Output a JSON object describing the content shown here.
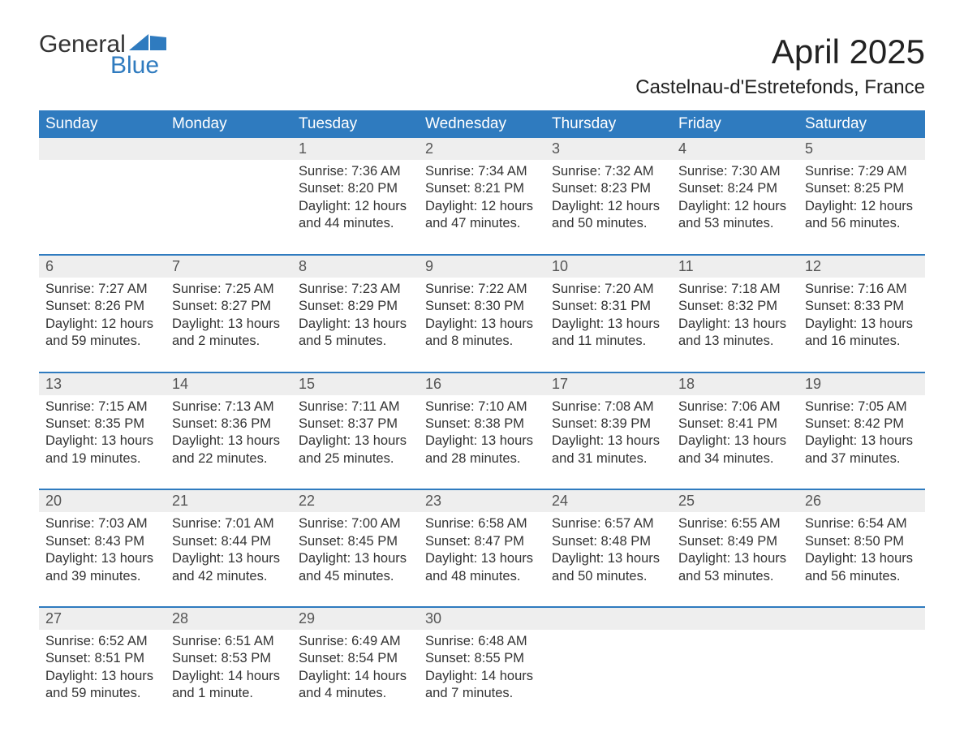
{
  "logo": {
    "text_general": "General",
    "text_blue": "Blue",
    "flag_color": "#2f7bbf"
  },
  "title": "April 2025",
  "location": "Castelnau-d'Estretefonds, France",
  "colors": {
    "header_bg": "#2f7bbf",
    "header_text": "#ffffff",
    "daynum_bg": "#eeeeee",
    "daynum_text": "#555555",
    "body_text": "#333333",
    "rule": "#2f7bbf",
    "background": "#ffffff"
  },
  "layout": {
    "columns": 7,
    "font_family": "Arial",
    "title_fontsize": 42,
    "location_fontsize": 24,
    "weekday_fontsize": 19,
    "daynum_fontsize": 18,
    "cell_fontsize": 16.5
  },
  "weekdays": [
    "Sunday",
    "Monday",
    "Tuesday",
    "Wednesday",
    "Thursday",
    "Friday",
    "Saturday"
  ],
  "weeks": [
    [
      null,
      null,
      {
        "n": "1",
        "sunrise": "7:36 AM",
        "sunset": "8:20 PM",
        "daylight": "12 hours and 44 minutes."
      },
      {
        "n": "2",
        "sunrise": "7:34 AM",
        "sunset": "8:21 PM",
        "daylight": "12 hours and 47 minutes."
      },
      {
        "n": "3",
        "sunrise": "7:32 AM",
        "sunset": "8:23 PM",
        "daylight": "12 hours and 50 minutes."
      },
      {
        "n": "4",
        "sunrise": "7:30 AM",
        "sunset": "8:24 PM",
        "daylight": "12 hours and 53 minutes."
      },
      {
        "n": "5",
        "sunrise": "7:29 AM",
        "sunset": "8:25 PM",
        "daylight": "12 hours and 56 minutes."
      }
    ],
    [
      {
        "n": "6",
        "sunrise": "7:27 AM",
        "sunset": "8:26 PM",
        "daylight": "12 hours and 59 minutes."
      },
      {
        "n": "7",
        "sunrise": "7:25 AM",
        "sunset": "8:27 PM",
        "daylight": "13 hours and 2 minutes."
      },
      {
        "n": "8",
        "sunrise": "7:23 AM",
        "sunset": "8:29 PM",
        "daylight": "13 hours and 5 minutes."
      },
      {
        "n": "9",
        "sunrise": "7:22 AM",
        "sunset": "8:30 PM",
        "daylight": "13 hours and 8 minutes."
      },
      {
        "n": "10",
        "sunrise": "7:20 AM",
        "sunset": "8:31 PM",
        "daylight": "13 hours and 11 minutes."
      },
      {
        "n": "11",
        "sunrise": "7:18 AM",
        "sunset": "8:32 PM",
        "daylight": "13 hours and 13 minutes."
      },
      {
        "n": "12",
        "sunrise": "7:16 AM",
        "sunset": "8:33 PM",
        "daylight": "13 hours and 16 minutes."
      }
    ],
    [
      {
        "n": "13",
        "sunrise": "7:15 AM",
        "sunset": "8:35 PM",
        "daylight": "13 hours and 19 minutes."
      },
      {
        "n": "14",
        "sunrise": "7:13 AM",
        "sunset": "8:36 PM",
        "daylight": "13 hours and 22 minutes."
      },
      {
        "n": "15",
        "sunrise": "7:11 AM",
        "sunset": "8:37 PM",
        "daylight": "13 hours and 25 minutes."
      },
      {
        "n": "16",
        "sunrise": "7:10 AM",
        "sunset": "8:38 PM",
        "daylight": "13 hours and 28 minutes."
      },
      {
        "n": "17",
        "sunrise": "7:08 AM",
        "sunset": "8:39 PM",
        "daylight": "13 hours and 31 minutes."
      },
      {
        "n": "18",
        "sunrise": "7:06 AM",
        "sunset": "8:41 PM",
        "daylight": "13 hours and 34 minutes."
      },
      {
        "n": "19",
        "sunrise": "7:05 AM",
        "sunset": "8:42 PM",
        "daylight": "13 hours and 37 minutes."
      }
    ],
    [
      {
        "n": "20",
        "sunrise": "7:03 AM",
        "sunset": "8:43 PM",
        "daylight": "13 hours and 39 minutes."
      },
      {
        "n": "21",
        "sunrise": "7:01 AM",
        "sunset": "8:44 PM",
        "daylight": "13 hours and 42 minutes."
      },
      {
        "n": "22",
        "sunrise": "7:00 AM",
        "sunset": "8:45 PM",
        "daylight": "13 hours and 45 minutes."
      },
      {
        "n": "23",
        "sunrise": "6:58 AM",
        "sunset": "8:47 PM",
        "daylight": "13 hours and 48 minutes."
      },
      {
        "n": "24",
        "sunrise": "6:57 AM",
        "sunset": "8:48 PM",
        "daylight": "13 hours and 50 minutes."
      },
      {
        "n": "25",
        "sunrise": "6:55 AM",
        "sunset": "8:49 PM",
        "daylight": "13 hours and 53 minutes."
      },
      {
        "n": "26",
        "sunrise": "6:54 AM",
        "sunset": "8:50 PM",
        "daylight": "13 hours and 56 minutes."
      }
    ],
    [
      {
        "n": "27",
        "sunrise": "6:52 AM",
        "sunset": "8:51 PM",
        "daylight": "13 hours and 59 minutes."
      },
      {
        "n": "28",
        "sunrise": "6:51 AM",
        "sunset": "8:53 PM",
        "daylight": "14 hours and 1 minute."
      },
      {
        "n": "29",
        "sunrise": "6:49 AM",
        "sunset": "8:54 PM",
        "daylight": "14 hours and 4 minutes."
      },
      {
        "n": "30",
        "sunrise": "6:48 AM",
        "sunset": "8:55 PM",
        "daylight": "14 hours and 7 minutes."
      },
      null,
      null,
      null
    ]
  ],
  "labels": {
    "sunrise": "Sunrise: ",
    "sunset": "Sunset: ",
    "daylight": "Daylight: "
  }
}
